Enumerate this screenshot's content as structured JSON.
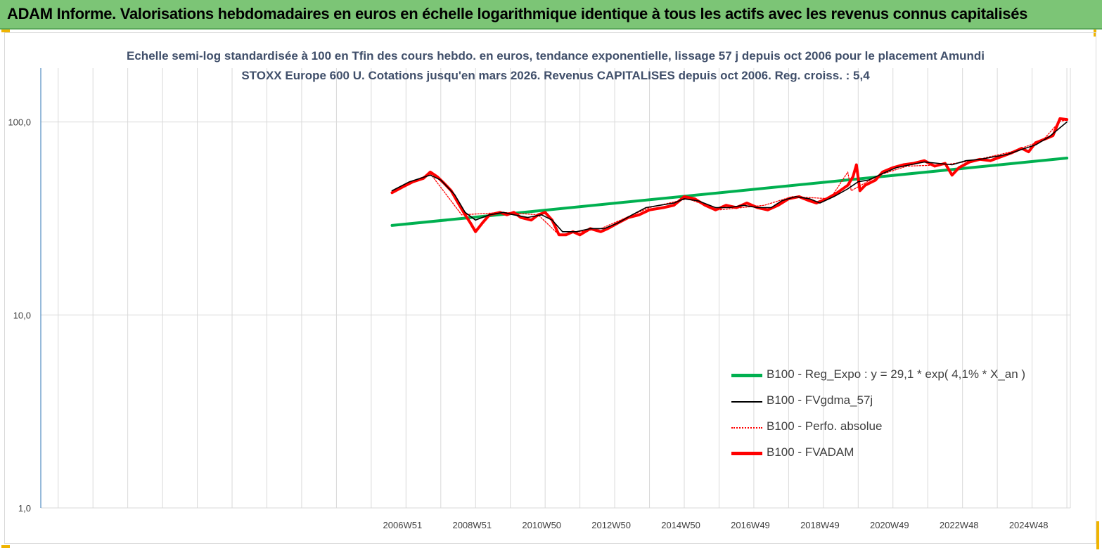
{
  "header": {
    "title": "ADAM Informe. Valorisations hebdomadaires en euros en échelle logarithmique identique à tous les actifs avec les revenus connus capitalisés"
  },
  "colors": {
    "header_bg": "#7cc576",
    "reg": "#00b050",
    "fvgdma": "#000000",
    "perfo": "#ff0000",
    "fvadam": "#ff0000",
    "axis": "#2e75b6",
    "grid": "#d9d9d9"
  },
  "chart_data": {
    "type": "line",
    "title": "Echelle semi-log standardisée à 100 en Tfin des cours hebdo. en euros, tendance exponentielle, lissage 57 j depuis oct 2006 pour le placement Amundi STOXX Europe 600 U. Cotations jusqu'en mars 2026. Revenus CAPITALISES depuis oct 2006. Reg. croiss. : 5,4",
    "y_scale": "log",
    "ylim": [
      1,
      190
    ],
    "y_ticks": [
      "1,0",
      "10,0",
      "100,0"
    ],
    "y_tick_values": [
      1,
      10,
      100
    ],
    "x_categories": [
      "2006W51",
      "2008W51",
      "2010W50",
      "2012W50",
      "2014W50",
      "2016W49",
      "2018W49",
      "2020W49",
      "2022W48",
      "2024W48"
    ],
    "xlim": [
      1996.7,
      2026.3
    ],
    "grid": true,
    "legend_position": "bottom-right",
    "series": [
      {
        "name": "B100 - Reg_Expo : y = 29,1 * exp( 4,1% *  X_an )",
        "style": "solid-thick",
        "color": "#00b050",
        "points": [
          [
            2006.8,
            29.1
          ],
          [
            2026.2,
            65.0
          ]
        ]
      },
      {
        "name": "B100 - FVgdma_57j",
        "style": "solid-thin",
        "color": "#000000",
        "points": [
          [
            2006.8,
            44
          ],
          [
            2007.3,
            49
          ],
          [
            2007.9,
            53
          ],
          [
            2008.2,
            50
          ],
          [
            2008.6,
            42
          ],
          [
            2008.9,
            34
          ],
          [
            2009.2,
            31
          ],
          [
            2009.6,
            33
          ],
          [
            2010.0,
            34
          ],
          [
            2010.3,
            33
          ],
          [
            2010.7,
            32
          ],
          [
            2011.1,
            33
          ],
          [
            2011.4,
            31
          ],
          [
            2011.7,
            27
          ],
          [
            2012.1,
            27
          ],
          [
            2012.5,
            28
          ],
          [
            2012.9,
            28
          ],
          [
            2013.3,
            30
          ],
          [
            2013.7,
            33
          ],
          [
            2014.1,
            36
          ],
          [
            2014.5,
            37
          ],
          [
            2014.9,
            38
          ],
          [
            2015.2,
            40
          ],
          [
            2015.6,
            39
          ],
          [
            2016.1,
            36
          ],
          [
            2016.5,
            36
          ],
          [
            2016.9,
            37
          ],
          [
            2017.3,
            36
          ],
          [
            2017.7,
            36
          ],
          [
            2018.0,
            39
          ],
          [
            2018.4,
            41
          ],
          [
            2018.8,
            40
          ],
          [
            2019.1,
            38
          ],
          [
            2019.5,
            41
          ],
          [
            2019.9,
            45
          ],
          [
            2020.2,
            49
          ],
          [
            2020.5,
            50
          ],
          [
            2020.9,
            54
          ],
          [
            2021.3,
            58
          ],
          [
            2021.7,
            60
          ],
          [
            2022.1,
            62
          ],
          [
            2022.5,
            61
          ],
          [
            2022.9,
            60
          ],
          [
            2023.3,
            63
          ],
          [
            2023.7,
            64
          ],
          [
            2024.1,
            66
          ],
          [
            2024.5,
            68
          ],
          [
            2024.9,
            72
          ],
          [
            2025.3,
            76
          ],
          [
            2025.7,
            84
          ],
          [
            2026.2,
            100
          ]
        ]
      },
      {
        "name": "B100 - Perfo. absolue",
        "style": "dotted",
        "color": "#ff0000",
        "points": [
          [
            2006.8,
            44
          ],
          [
            2007.9,
            54
          ],
          [
            2008.8,
            33
          ],
          [
            2010.0,
            34
          ],
          [
            2011.0,
            33
          ],
          [
            2011.6,
            26
          ],
          [
            2012.8,
            28
          ],
          [
            2014.2,
            36
          ],
          [
            2015.3,
            40
          ],
          [
            2016.2,
            35
          ],
          [
            2017.5,
            37
          ],
          [
            2018.3,
            41
          ],
          [
            2019.4,
            40
          ],
          [
            2019.9,
            55
          ],
          [
            2020.0,
            44
          ],
          [
            2020.8,
            53
          ],
          [
            2021.6,
            59
          ],
          [
            2022.7,
            60
          ],
          [
            2023.5,
            63
          ],
          [
            2024.6,
            70
          ],
          [
            2025.5,
            80
          ],
          [
            2026.0,
            101
          ],
          [
            2026.2,
            102
          ]
        ]
      },
      {
        "name": "B100 - FVADAM",
        "style": "solid-thick",
        "color": "#ff0000",
        "points": [
          [
            2006.8,
            43
          ],
          [
            2007.1,
            46
          ],
          [
            2007.4,
            49
          ],
          [
            2007.7,
            51
          ],
          [
            2007.9,
            55
          ],
          [
            2008.1,
            52
          ],
          [
            2008.3,
            48
          ],
          [
            2008.5,
            44
          ],
          [
            2008.7,
            38
          ],
          [
            2008.9,
            33
          ],
          [
            2009.05,
            30
          ],
          [
            2009.2,
            27
          ],
          [
            2009.4,
            30
          ],
          [
            2009.6,
            33
          ],
          [
            2009.9,
            34
          ],
          [
            2010.1,
            33
          ],
          [
            2010.3,
            34
          ],
          [
            2010.5,
            32
          ],
          [
            2010.8,
            31
          ],
          [
            2011.0,
            33
          ],
          [
            2011.2,
            34
          ],
          [
            2011.4,
            31
          ],
          [
            2011.6,
            26
          ],
          [
            2011.8,
            26
          ],
          [
            2012.0,
            27
          ],
          [
            2012.2,
            26
          ],
          [
            2012.5,
            28
          ],
          [
            2012.8,
            27
          ],
          [
            2013.0,
            28
          ],
          [
            2013.3,
            30
          ],
          [
            2013.6,
            32
          ],
          [
            2013.9,
            33
          ],
          [
            2014.2,
            35
          ],
          [
            2014.6,
            36
          ],
          [
            2014.9,
            37
          ],
          [
            2015.2,
            41
          ],
          [
            2015.5,
            40
          ],
          [
            2015.8,
            37
          ],
          [
            2016.1,
            35
          ],
          [
            2016.4,
            37
          ],
          [
            2016.7,
            36
          ],
          [
            2017.0,
            38
          ],
          [
            2017.3,
            36
          ],
          [
            2017.6,
            35
          ],
          [
            2017.9,
            37
          ],
          [
            2018.2,
            40
          ],
          [
            2018.5,
            41
          ],
          [
            2018.8,
            39
          ],
          [
            2019.0,
            38
          ],
          [
            2019.3,
            40
          ],
          [
            2019.6,
            43
          ],
          [
            2019.9,
            47
          ],
          [
            2020.05,
            52
          ],
          [
            2020.15,
            60
          ],
          [
            2020.25,
            44
          ],
          [
            2020.4,
            47
          ],
          [
            2020.7,
            50
          ],
          [
            2020.9,
            55
          ],
          [
            2021.2,
            58
          ],
          [
            2021.5,
            60
          ],
          [
            2021.8,
            61
          ],
          [
            2022.1,
            63
          ],
          [
            2022.4,
            59
          ],
          [
            2022.7,
            61
          ],
          [
            2022.9,
            53
          ],
          [
            2023.1,
            58
          ],
          [
            2023.4,
            62
          ],
          [
            2023.7,
            64
          ],
          [
            2024.0,
            63
          ],
          [
            2024.3,
            66
          ],
          [
            2024.6,
            69
          ],
          [
            2024.9,
            73
          ],
          [
            2025.1,
            70
          ],
          [
            2025.3,
            78
          ],
          [
            2025.6,
            82
          ],
          [
            2025.8,
            85
          ],
          [
            2026.0,
            104
          ],
          [
            2026.2,
            103
          ]
        ]
      }
    ]
  }
}
